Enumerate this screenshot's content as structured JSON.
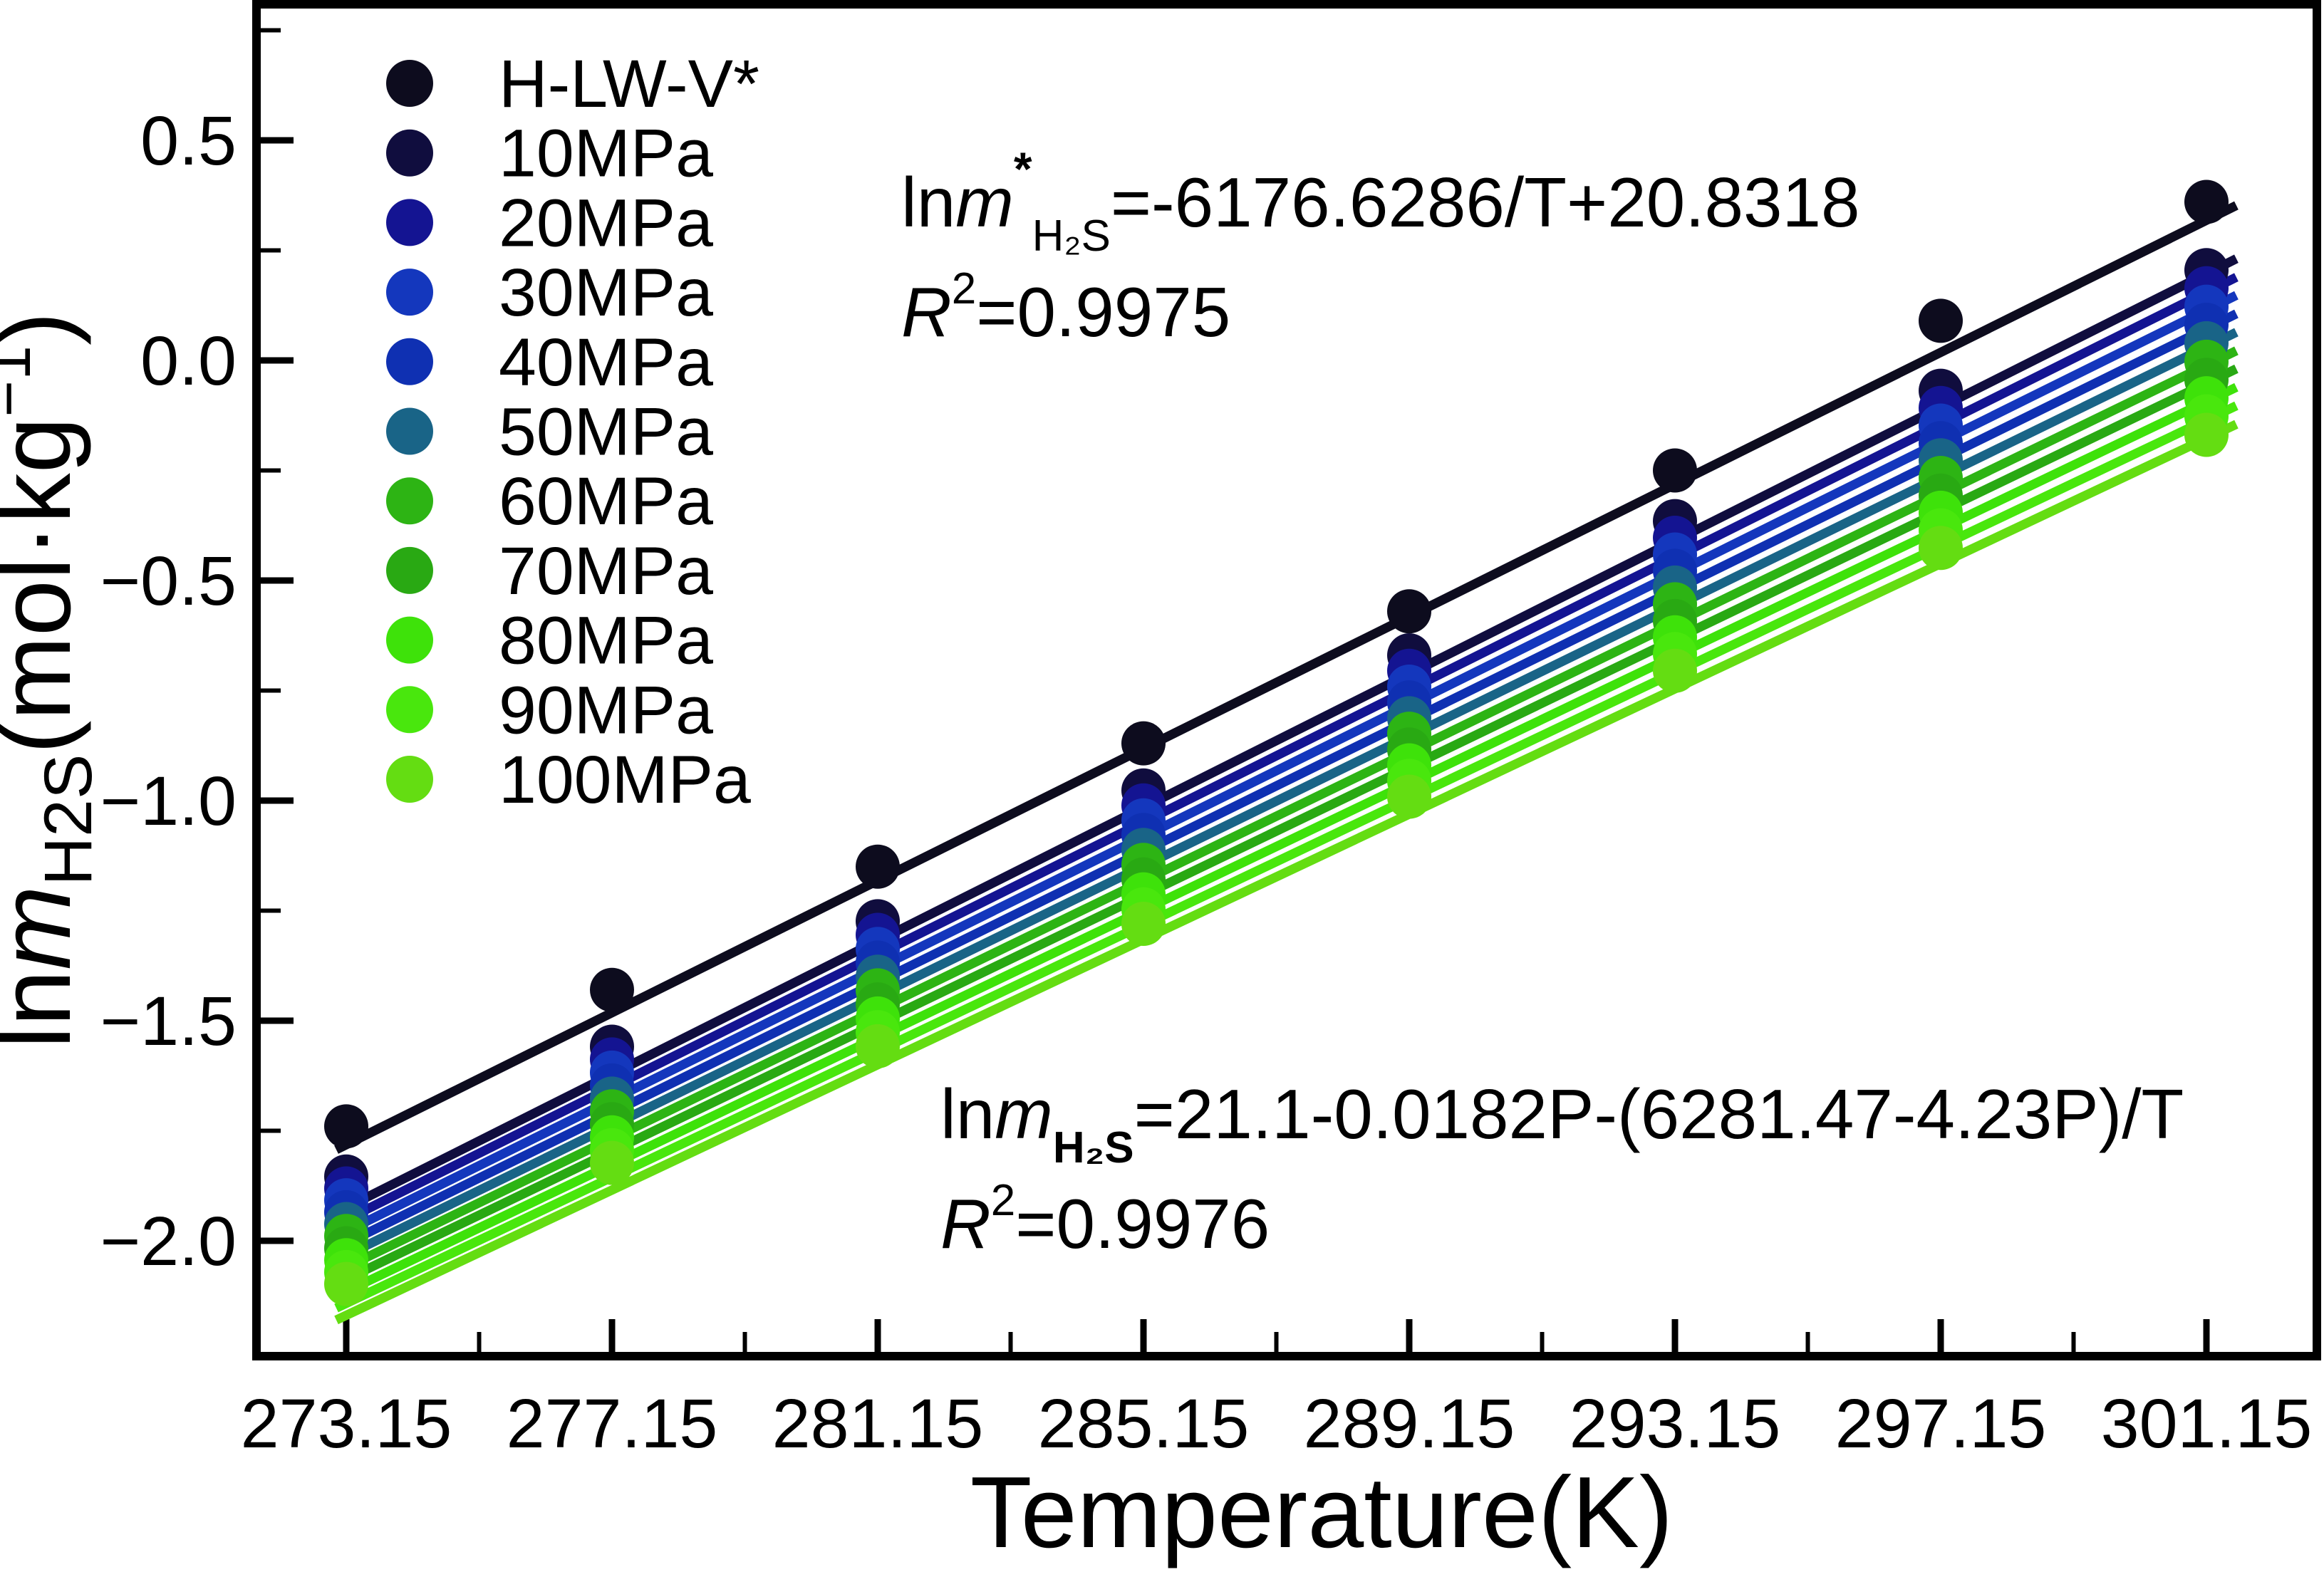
{
  "chart_data": {
    "type": "scatter",
    "title": "",
    "xlabel": "Temperature(K)",
    "ylabel": "lnmH2S(mol·kg−1)",
    "x_range": [
      271.8,
      302.9
    ],
    "y_range": [
      -2.27,
      0.81
    ],
    "grid": false,
    "legend_position": "upper-left",
    "x_ticks": {
      "values": [
        273.15,
        277.15,
        281.15,
        285.15,
        289.15,
        293.15,
        297.15,
        301.15
      ],
      "labels": [
        "273.15",
        "277.15",
        "281.15",
        "285.15",
        "289.15",
        "293.15",
        "297.15",
        "301.15"
      ],
      "minor": [
        275.15,
        279.15,
        283.15,
        287.15,
        291.15,
        295.15,
        299.15
      ]
    },
    "y_ticks": {
      "values": [
        0.5,
        0.0,
        -0.5,
        -1.0,
        -1.5,
        -2.0
      ],
      "labels": [
        "0.5",
        "0.0",
        "−0.5",
        "−1.0",
        "−1.5",
        "−2.0"
      ],
      "minor": [
        0.75,
        0.25,
        -0.25,
        -0.75,
        -1.25,
        -1.75
      ]
    },
    "temperatures": [
      273.15,
      277.15,
      281.15,
      285.15,
      289.15,
      293.15,
      297.15,
      301.15
    ],
    "series": [
      {
        "label": "H-LW-V*",
        "color": "#0D0C1E",
        "values": [
          -1.74,
          -1.43,
          -1.15,
          -0.87,
          -0.57,
          -0.25,
          0.09,
          0.36
        ],
        "line": {
          "t": [
            273.0,
            301.6
          ],
          "v": [
            -1.793,
            0.352
          ]
        }
      },
      {
        "label": "10MPa",
        "color": "#100D3E",
        "values": [
          -1.854,
          -1.559,
          -1.274,
          -0.977,
          -0.67,
          -0.365,
          -0.069,
          0.205
        ],
        "line": {
          "t": [
            273.0,
            301.6
          ],
          "v": [
            -1.936,
            0.231
          ]
        }
      },
      {
        "label": "20MPa",
        "color": "#141492",
        "values": [
          -1.881,
          -1.588,
          -1.305,
          -1.011,
          -0.705,
          -0.403,
          -0.108,
          0.164
        ],
        "line": {
          "t": [
            273.0,
            301.6
          ],
          "v": [
            -1.963,
            0.189
          ]
        }
      },
      {
        "label": "30MPa",
        "color": "#1437BD",
        "values": [
          -1.908,
          -1.618,
          -1.337,
          -1.045,
          -0.741,
          -0.441,
          -0.148,
          0.122
        ],
        "line": {
          "t": [
            273.0,
            301.6
          ],
          "v": [
            -1.99,
            0.148
          ]
        }
      },
      {
        "label": "40MPa",
        "color": "#0F30B2",
        "values": [
          -1.935,
          -1.647,
          -1.368,
          -1.078,
          -0.777,
          -0.478,
          -0.188,
          0.081
        ],
        "line": {
          "t": [
            273.0,
            301.6
          ],
          "v": [
            -2.017,
            0.106
          ]
        }
      },
      {
        "label": "50MPa",
        "color": "#196487",
        "values": [
          -1.962,
          -1.677,
          -1.4,
          -1.112,
          -0.813,
          -0.516,
          -0.227,
          0.039
        ],
        "line": {
          "t": [
            273.0,
            301.6
          ],
          "v": [
            -2.044,
            0.064
          ]
        }
      },
      {
        "label": "60MPa",
        "color": "#2DB414",
        "values": [
          -1.989,
          -1.706,
          -1.431,
          -1.146,
          -0.848,
          -0.554,
          -0.267,
          -0.003
        ],
        "line": {
          "t": [
            273.0,
            301.6
          ],
          "v": [
            -2.071,
            0.022
          ]
        }
      },
      {
        "label": "70MPa",
        "color": "#29A913",
        "values": [
          -2.017,
          -1.735,
          -1.463,
          -1.179,
          -0.884,
          -0.592,
          -0.307,
          -0.044
        ],
        "line": {
          "t": [
            273.0,
            301.6
          ],
          "v": [
            -2.098,
            -0.019
          ]
        }
      },
      {
        "label": "80MPa",
        "color": "#3EE20A",
        "values": [
          -2.044,
          -1.765,
          -1.495,
          -1.213,
          -0.92,
          -0.629,
          -0.346,
          -0.086
        ],
        "line": {
          "t": [
            273.0,
            301.6
          ],
          "v": [
            -2.126,
            -0.061
          ]
        }
      },
      {
        "label": "90MPa",
        "color": "#49E70D",
        "values": [
          -2.071,
          -1.794,
          -1.526,
          -1.247,
          -0.955,
          -0.667,
          -0.386,
          -0.127
        ],
        "line": {
          "t": [
            273.0,
            301.6
          ],
          "v": [
            -2.153,
            -0.103
          ]
        }
      },
      {
        "label": "100MPa",
        "color": "#64DD12",
        "values": [
          -2.098,
          -1.823,
          -1.558,
          -1.28,
          -0.991,
          -0.705,
          -0.426,
          -0.169
        ],
        "line": {
          "t": [
            273.0,
            301.6
          ],
          "v": [
            -2.18,
            -0.145
          ]
        }
      }
    ]
  },
  "annotations": {
    "eq1": {
      "ln": "ln",
      "m": "m",
      "sup": "*",
      "sub": "H₂S",
      "rhs": "=-6176.6286/T+20.8318"
    },
    "eq1_r2": {
      "base": "R",
      "sup": "2",
      "rhs": "=0.9975"
    },
    "eq2": {
      "ln": "ln",
      "m": "m",
      "sub": "H₂S",
      "rhs": "=21.1-0.0182P-(6281.47-4.23P)/T"
    },
    "eq2_r2": {
      "base": "R",
      "sup": "2",
      "rhs": "=0.9976"
    }
  },
  "axes_titles": {
    "x_title": "Temperature(K)",
    "y_ln": "ln",
    "y_m": "m",
    "y_sub": "H2S",
    "y_unit": "(mol·kg",
    "y_sup": "−1",
    "y_close": ")"
  },
  "frame_color": "#000000"
}
